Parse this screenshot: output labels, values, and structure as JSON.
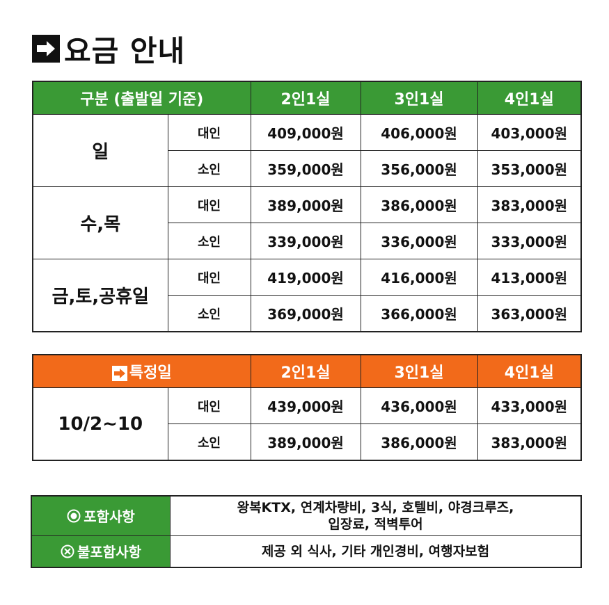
{
  "title": "요금 안내",
  "regular": {
    "header": [
      "구분 (출발일 기준)",
      "2인1실",
      "3인1실",
      "4인1실"
    ],
    "groups": [
      {
        "name": "일",
        "rows": [
          {
            "age": "대인",
            "prices": [
              "409,000원",
              "406,000원",
              "403,000원"
            ]
          },
          {
            "age": "소인",
            "prices": [
              "359,000원",
              "356,000원",
              "353,000원"
            ]
          }
        ]
      },
      {
        "name": "수,목",
        "rows": [
          {
            "age": "대인",
            "prices": [
              "389,000원",
              "386,000원",
              "383,000원"
            ]
          },
          {
            "age": "소인",
            "prices": [
              "339,000원",
              "336,000원",
              "333,000원"
            ]
          }
        ]
      },
      {
        "name": "금,토,공휴일",
        "rows": [
          {
            "age": "대인",
            "prices": [
              "419,000원",
              "416,000원",
              "413,000원"
            ]
          },
          {
            "age": "소인",
            "prices": [
              "369,000원",
              "366,000원",
              "363,000원"
            ]
          }
        ]
      }
    ]
  },
  "special": {
    "header": [
      "특정일",
      "2인1실",
      "3인1실",
      "4인1실"
    ],
    "group": "10/2~10",
    "rows": [
      {
        "age": "대인",
        "prices": [
          "439,000원",
          "436,000원",
          "433,000원"
        ]
      },
      {
        "age": "소인",
        "prices": [
          "389,000원",
          "386,000원",
          "383,000원"
        ]
      }
    ]
  },
  "info": {
    "included_label": "포함사항",
    "included_line1": "왕복KTX, 연계차량비, 3식, 호텔비, 야경크루즈,",
    "included_line2": "입장료, 적벽투어",
    "excluded_label": "불포함사항",
    "excluded_value": "제공 외 식사, 기타 개인경비, 여행자보험"
  },
  "colors": {
    "green": "#3a9a35",
    "orange": "#f26a1a"
  },
  "icons": [
    "arrow-right-box-icon",
    "circle-dot-icon",
    "circle-x-icon"
  ]
}
